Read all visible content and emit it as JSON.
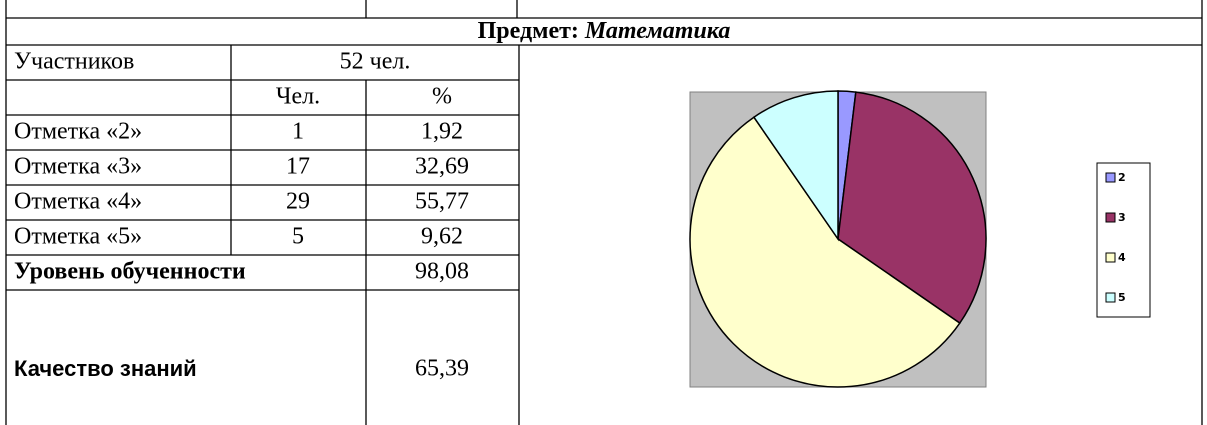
{
  "header": {
    "label": "Предмет:",
    "subject": "Математика"
  },
  "table": {
    "participants_label": "Участников",
    "participants": "52 чел.",
    "columns": [
      "Чел.",
      "%"
    ],
    "rows": [
      [
        "Отметка «2»",
        "1",
        "1,92"
      ],
      [
        "Отметка «3»",
        "17",
        "32,69"
      ],
      [
        "Отметка «4»",
        "29",
        "55,77"
      ],
      [
        "Отметка «5»",
        "5",
        "9,62"
      ]
    ],
    "level_label": "Уровень обученности",
    "level": "98,08",
    "quality_label": "Качество знаний",
    "quality": "65,39"
  },
  "chart_data": {
    "type": "pie",
    "categories": [
      "2",
      "3",
      "4",
      "5"
    ],
    "values": [
      1,
      17,
      29,
      5
    ],
    "colors": [
      "#9999ff",
      "#993366",
      "#ffffcc",
      "#ccffff"
    ],
    "legend": "right"
  }
}
